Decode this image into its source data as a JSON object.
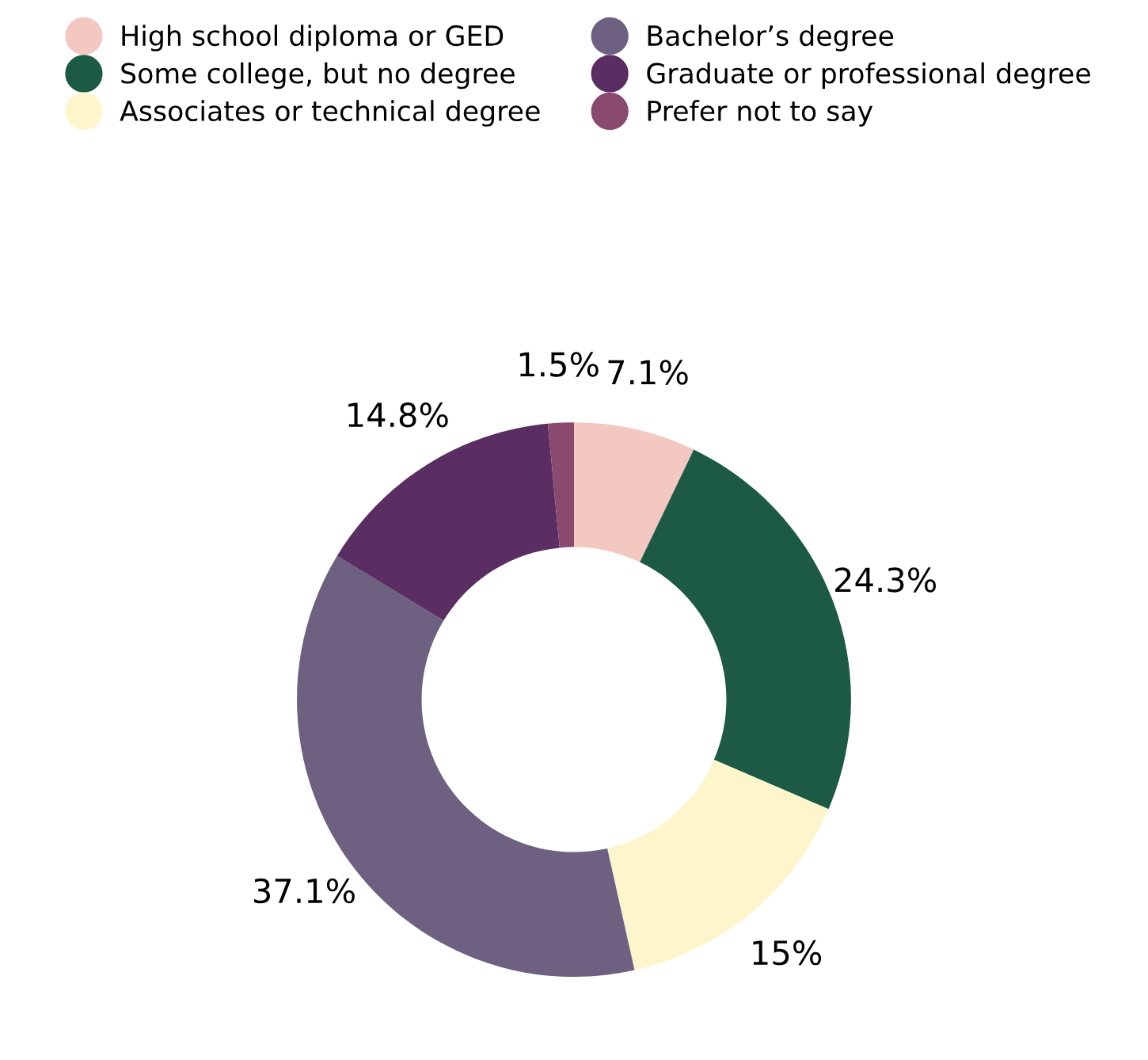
{
  "chart_data": {
    "type": "donut",
    "categories": [
      "High school diploma or GED",
      "Some college, but no degree",
      "Associates or technical degree",
      "Bachelor’s degree",
      "Graduate or professional degree",
      "Prefer not to say"
    ],
    "values": [
      7.1,
      24.3,
      15,
      37.1,
      14.8,
      1.5
    ],
    "value_labels": [
      "7.1%",
      "24.3%",
      "15%",
      "37.1%",
      "14.8%",
      "1.5%"
    ],
    "colors": [
      "#f2c8c0",
      "#1d5a45",
      "#fdf6cc",
      "#6d6080",
      "#5a2e62",
      "#8a4a70"
    ],
    "legend": "top"
  }
}
